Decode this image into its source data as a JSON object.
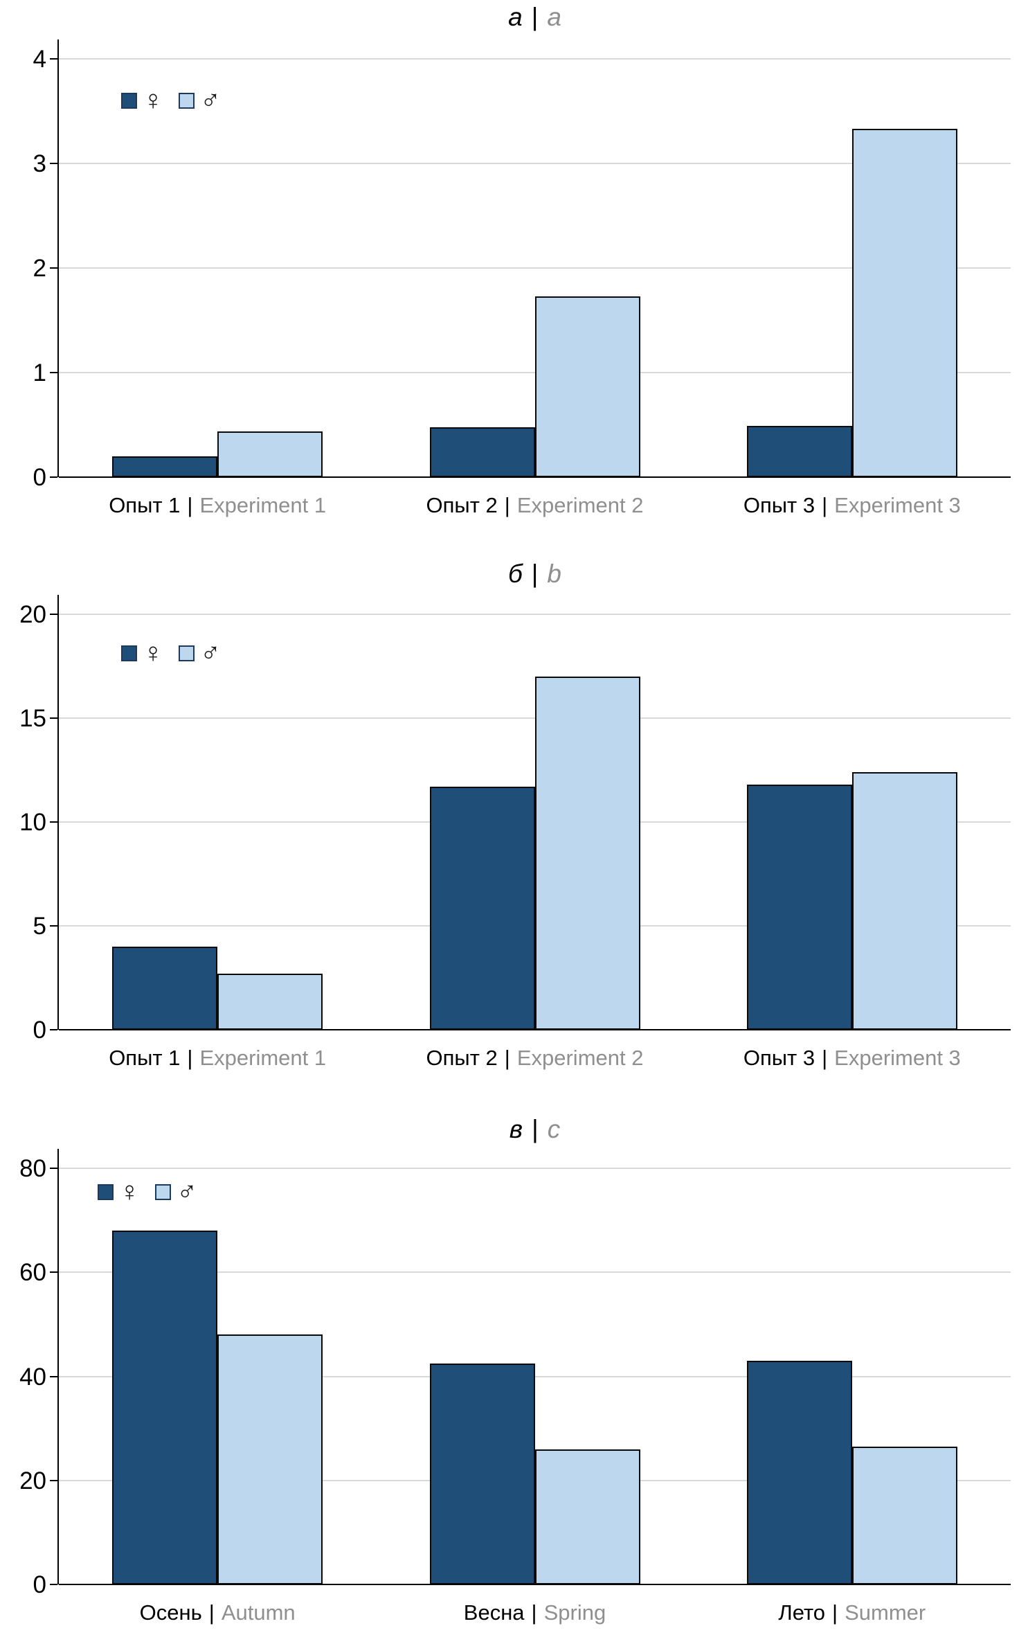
{
  "figure": {
    "separator": "|",
    "legend": {
      "female_symbol": "♀",
      "male_symbol": "♂"
    },
    "colors": {
      "female_fill": "#1F4E79",
      "male_fill": "#BDD7EE",
      "bar_border": "#000000",
      "gridline": "#D9D9D9",
      "axis": "#000000",
      "primary_text": "#000000",
      "secondary_text": "#8F8F8F"
    }
  },
  "chart_data": [
    {
      "type": "bar",
      "title": "а | a",
      "title_primary": "а",
      "title_secondary": "a",
      "categories": [
        {
          "primary": "Опыт 1",
          "secondary": "Experiment 1"
        },
        {
          "primary": "Опыт 2",
          "secondary": "Experiment 2"
        },
        {
          "primary": "Опыт 3",
          "secondary": "Experiment 3"
        }
      ],
      "series": [
        {
          "name": "♀",
          "label": "female",
          "values": [
            0.2,
            0.48,
            0.49
          ]
        },
        {
          "name": "♂",
          "label": "male",
          "values": [
            0.44,
            1.73,
            3.33
          ]
        }
      ],
      "ylim": [
        0,
        4
      ],
      "yticks": [
        0,
        1,
        2,
        3,
        4
      ],
      "grid": true,
      "legend_position": "top-left"
    },
    {
      "type": "bar",
      "title": "б | b",
      "title_primary": "б",
      "title_secondary": "b",
      "categories": [
        {
          "primary": "Опыт 1",
          "secondary": "Experiment 1"
        },
        {
          "primary": "Опыт 2",
          "secondary": "Experiment 2"
        },
        {
          "primary": "Опыт 3",
          "secondary": "Experiment 3"
        }
      ],
      "series": [
        {
          "name": "♀",
          "label": "female",
          "values": [
            4.0,
            11.7,
            11.8
          ]
        },
        {
          "name": "♂",
          "label": "male",
          "values": [
            2.7,
            17.0,
            12.4
          ]
        }
      ],
      "ylim": [
        0,
        20
      ],
      "yticks": [
        0,
        5,
        10,
        15,
        20
      ],
      "grid": true,
      "legend_position": "top-left"
    },
    {
      "type": "bar",
      "title": "в | c",
      "title_primary": "в",
      "title_secondary": "c",
      "categories": [
        {
          "primary": "Осень",
          "secondary": "Autumn"
        },
        {
          "primary": "Весна",
          "secondary": "Spring"
        },
        {
          "primary": "Лето",
          "secondary": "Summer"
        }
      ],
      "series": [
        {
          "name": "♀",
          "label": "female",
          "values": [
            68,
            42.5,
            43
          ]
        },
        {
          "name": "♂",
          "label": "male",
          "values": [
            48,
            26,
            26.5
          ]
        }
      ],
      "ylim": [
        0,
        80
      ],
      "yticks": [
        0,
        20,
        40,
        60,
        80
      ],
      "grid": true,
      "legend_position": "top-left"
    }
  ]
}
